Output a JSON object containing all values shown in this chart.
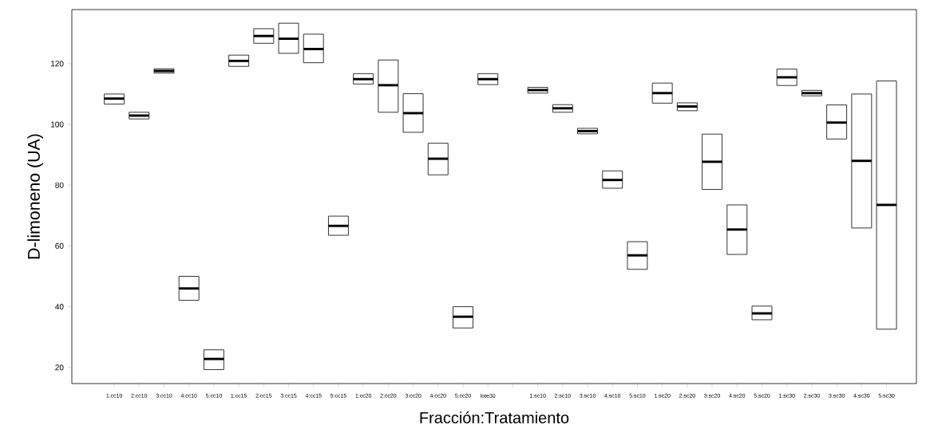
{
  "chart_data": {
    "type": "box",
    "xlabel": "Fracción:Tratamiento",
    "ylabel": "D-limoneno (UA)",
    "categories": [
      "1:cc10",
      "2:cc10",
      "3:cc10",
      "4:cc10",
      "5:cc10",
      "1:cc15",
      "2:cc15",
      "3.cc15",
      "4:cc15",
      "5:cc15",
      "1:cc20",
      "2:cc20",
      "3:cc20",
      "4:cc20",
      "5:cc20",
      "lote30",
      null,
      "1:sc10",
      "2:sc10",
      "3:sc10",
      "4:sc10",
      "5:sc10",
      "1:sc20",
      "2:sc20",
      "3:sc20",
      "4:sc20",
      "5:sc20",
      "1:sc30",
      "2:sc30",
      "3:sc30",
      "4:sc30",
      "5:sc30"
    ],
    "boxes": [
      {
        "low": 106.7,
        "q1": 106.7,
        "median": 108.5,
        "q3": 110.0,
        "high": 110.0
      },
      {
        "low": 101.8,
        "q1": 101.8,
        "median": 102.9,
        "q3": 104.0,
        "high": 104.0
      },
      {
        "low": 116.9,
        "q1": 116.9,
        "median": 117.6,
        "q3": 118.3,
        "high": 118.3
      },
      {
        "low": 42.1,
        "q1": 42.1,
        "median": 46.0,
        "q3": 50.0,
        "high": 50.0
      },
      {
        "low": 19.3,
        "q1": 19.3,
        "median": 22.8,
        "q3": 25.8,
        "high": 25.8
      },
      {
        "low": 119.1,
        "q1": 119.1,
        "median": 120.9,
        "q3": 122.8,
        "high": 122.8
      },
      {
        "low": 126.7,
        "q1": 126.7,
        "median": 129.1,
        "q3": 131.5,
        "high": 131.5
      },
      {
        "low": 123.4,
        "q1": 123.4,
        "median": 128.2,
        "q3": 133.3,
        "high": 133.3
      },
      {
        "low": 120.3,
        "q1": 120.3,
        "median": 124.8,
        "q3": 129.7,
        "high": 129.7
      },
      {
        "low": 63.5,
        "q1": 63.5,
        "median": 66.6,
        "q3": 69.8,
        "high": 69.8
      },
      {
        "low": 113.3,
        "q1": 113.3,
        "median": 114.9,
        "q3": 116.7,
        "high": 116.7
      },
      {
        "low": 104.0,
        "q1": 104.0,
        "median": 112.9,
        "q3": 121.2,
        "high": 121.2
      },
      {
        "low": 97.4,
        "q1": 97.4,
        "median": 103.7,
        "q3": 110.1,
        "high": 110.1
      },
      {
        "low": 83.4,
        "q1": 83.4,
        "median": 88.7,
        "q3": 93.8,
        "high": 93.8
      },
      {
        "low": 33.0,
        "q1": 33.0,
        "median": 36.7,
        "q3": 40.0,
        "high": 40.0
      },
      {
        "low": 113.1,
        "q1": 113.1,
        "median": 114.9,
        "q3": 116.7,
        "high": 116.7
      },
      null,
      {
        "low": 110.3,
        "q1": 110.3,
        "median": 111.3,
        "q3": 112.2,
        "high": 112.2
      },
      {
        "low": 104.0,
        "q1": 104.0,
        "median": 105.3,
        "q3": 106.5,
        "high": 106.5
      },
      {
        "low": 96.9,
        "q1": 96.9,
        "median": 97.8,
        "q3": 98.7,
        "high": 98.7
      },
      {
        "low": 79.0,
        "q1": 79.0,
        "median": 81.7,
        "q3": 84.7,
        "high": 84.7
      },
      {
        "low": 52.3,
        "q1": 52.3,
        "median": 56.9,
        "q3": 61.4,
        "high": 61.4
      },
      {
        "low": 107.0,
        "q1": 107.0,
        "median": 110.3,
        "q3": 113.6,
        "high": 113.6
      },
      {
        "low": 104.5,
        "q1": 104.5,
        "median": 105.9,
        "q3": 107.1,
        "high": 107.1
      },
      {
        "low": 78.6,
        "q1": 78.6,
        "median": 87.7,
        "q3": 96.8,
        "high": 96.8
      },
      {
        "low": 57.2,
        "q1": 57.2,
        "median": 65.4,
        "q3": 73.5,
        "high": 73.5
      },
      {
        "low": 35.7,
        "q1": 35.7,
        "median": 37.8,
        "q3": 40.2,
        "high": 40.2
      },
      {
        "low": 112.8,
        "q1": 112.8,
        "median": 115.5,
        "q3": 118.2,
        "high": 118.2
      },
      {
        "low": 109.4,
        "q1": 109.4,
        "median": 110.3,
        "q3": 111.2,
        "high": 111.2
      },
      {
        "low": 95.2,
        "q1": 95.2,
        "median": 100.6,
        "q3": 106.4,
        "high": 106.4
      },
      {
        "low": 65.9,
        "q1": 65.9,
        "median": 88.0,
        "q3": 110.0,
        "high": 110.0
      },
      {
        "low": 32.6,
        "q1": 32.6,
        "median": 73.5,
        "q3": 114.3,
        "high": 114.3
      }
    ],
    "ylim": [
      14.7,
      137.8
    ],
    "yticks": [
      20,
      40,
      60,
      80,
      100,
      120
    ]
  }
}
